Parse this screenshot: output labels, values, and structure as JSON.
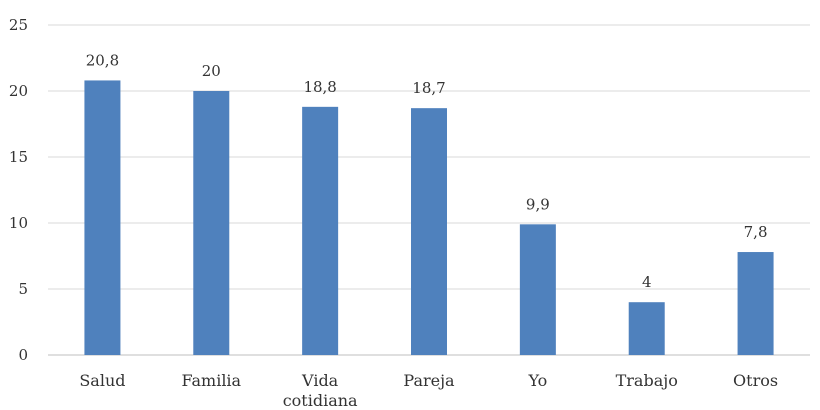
{
  "chart_data": {
    "type": "bar",
    "title": "",
    "xlabel": "",
    "ylabel": "",
    "categories": [
      [
        "Salud"
      ],
      [
        "Familia"
      ],
      [
        "Vida",
        "cotidiana"
      ],
      [
        "Pareja"
      ],
      [
        "Yo"
      ],
      [
        "Trabajo"
      ],
      [
        "Otros"
      ]
    ],
    "values": [
      20.8,
      20,
      18.8,
      18.7,
      9.9,
      4,
      7.8
    ],
    "data_labels": [
      "20,8",
      "20",
      "18,8",
      "18,7",
      "9,9",
      "4",
      "7,8"
    ],
    "ylim": [
      0,
      25
    ],
    "yticks": [
      0,
      5,
      10,
      15,
      20,
      25
    ],
    "grid": true,
    "legend": "none",
    "bar_color": "#4f81bd"
  }
}
